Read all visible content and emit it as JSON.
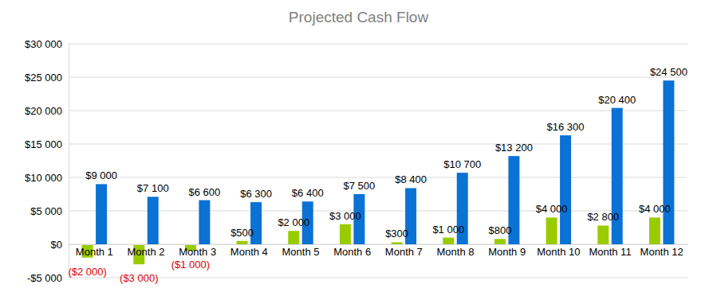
{
  "chart_data": {
    "type": "bar",
    "title": "Projected Cash Flow",
    "categories": [
      "Month 1",
      "Month 2",
      "Month 3",
      "Month 4",
      "Month 5",
      "Month 6",
      "Month 7",
      "Month 8",
      "Month 9",
      "Month 10",
      "Month 11",
      "Month 12"
    ],
    "series": [
      {
        "color": "#99cc00",
        "values": [
          -2000,
          -3000,
          -1000,
          500,
          2000,
          3000,
          300,
          1000,
          800,
          4000,
          2800,
          4000
        ],
        "value_labels": [
          "($2 000)",
          "($3 000)",
          "($1 000)",
          "$500",
          "$2 000",
          "$3 000",
          "$300",
          "$1 000",
          "$800",
          "$4 000",
          "$2 800",
          "$4 000"
        ]
      },
      {
        "color": "#0a72d4",
        "values": [
          9000,
          7100,
          6600,
          6300,
          6400,
          7500,
          8400,
          10700,
          13200,
          16300,
          20400,
          24500
        ],
        "value_labels": [
          "$9 000",
          "$7 100",
          "$6 600",
          "$6 300",
          "$6 400",
          "$7 500",
          "$8 400",
          "$10 700",
          "$13 200",
          "$16 300",
          "$20 400",
          "$24 500"
        ]
      }
    ],
    "ylim": [
      -5000,
      30000
    ],
    "yticks": [
      {
        "value": -5000,
        "label": "-$5 000"
      },
      {
        "value": 0,
        "label": "$0"
      },
      {
        "value": 5000,
        "label": "$5 000"
      },
      {
        "value": 10000,
        "label": "$10 000"
      },
      {
        "value": 15000,
        "label": "$15 000"
      },
      {
        "value": 20000,
        "label": "$20 000"
      },
      {
        "value": 25000,
        "label": "$25 000"
      },
      {
        "value": 30000,
        "label": "$30 000"
      }
    ],
    "grid": true,
    "data_labels": true
  }
}
